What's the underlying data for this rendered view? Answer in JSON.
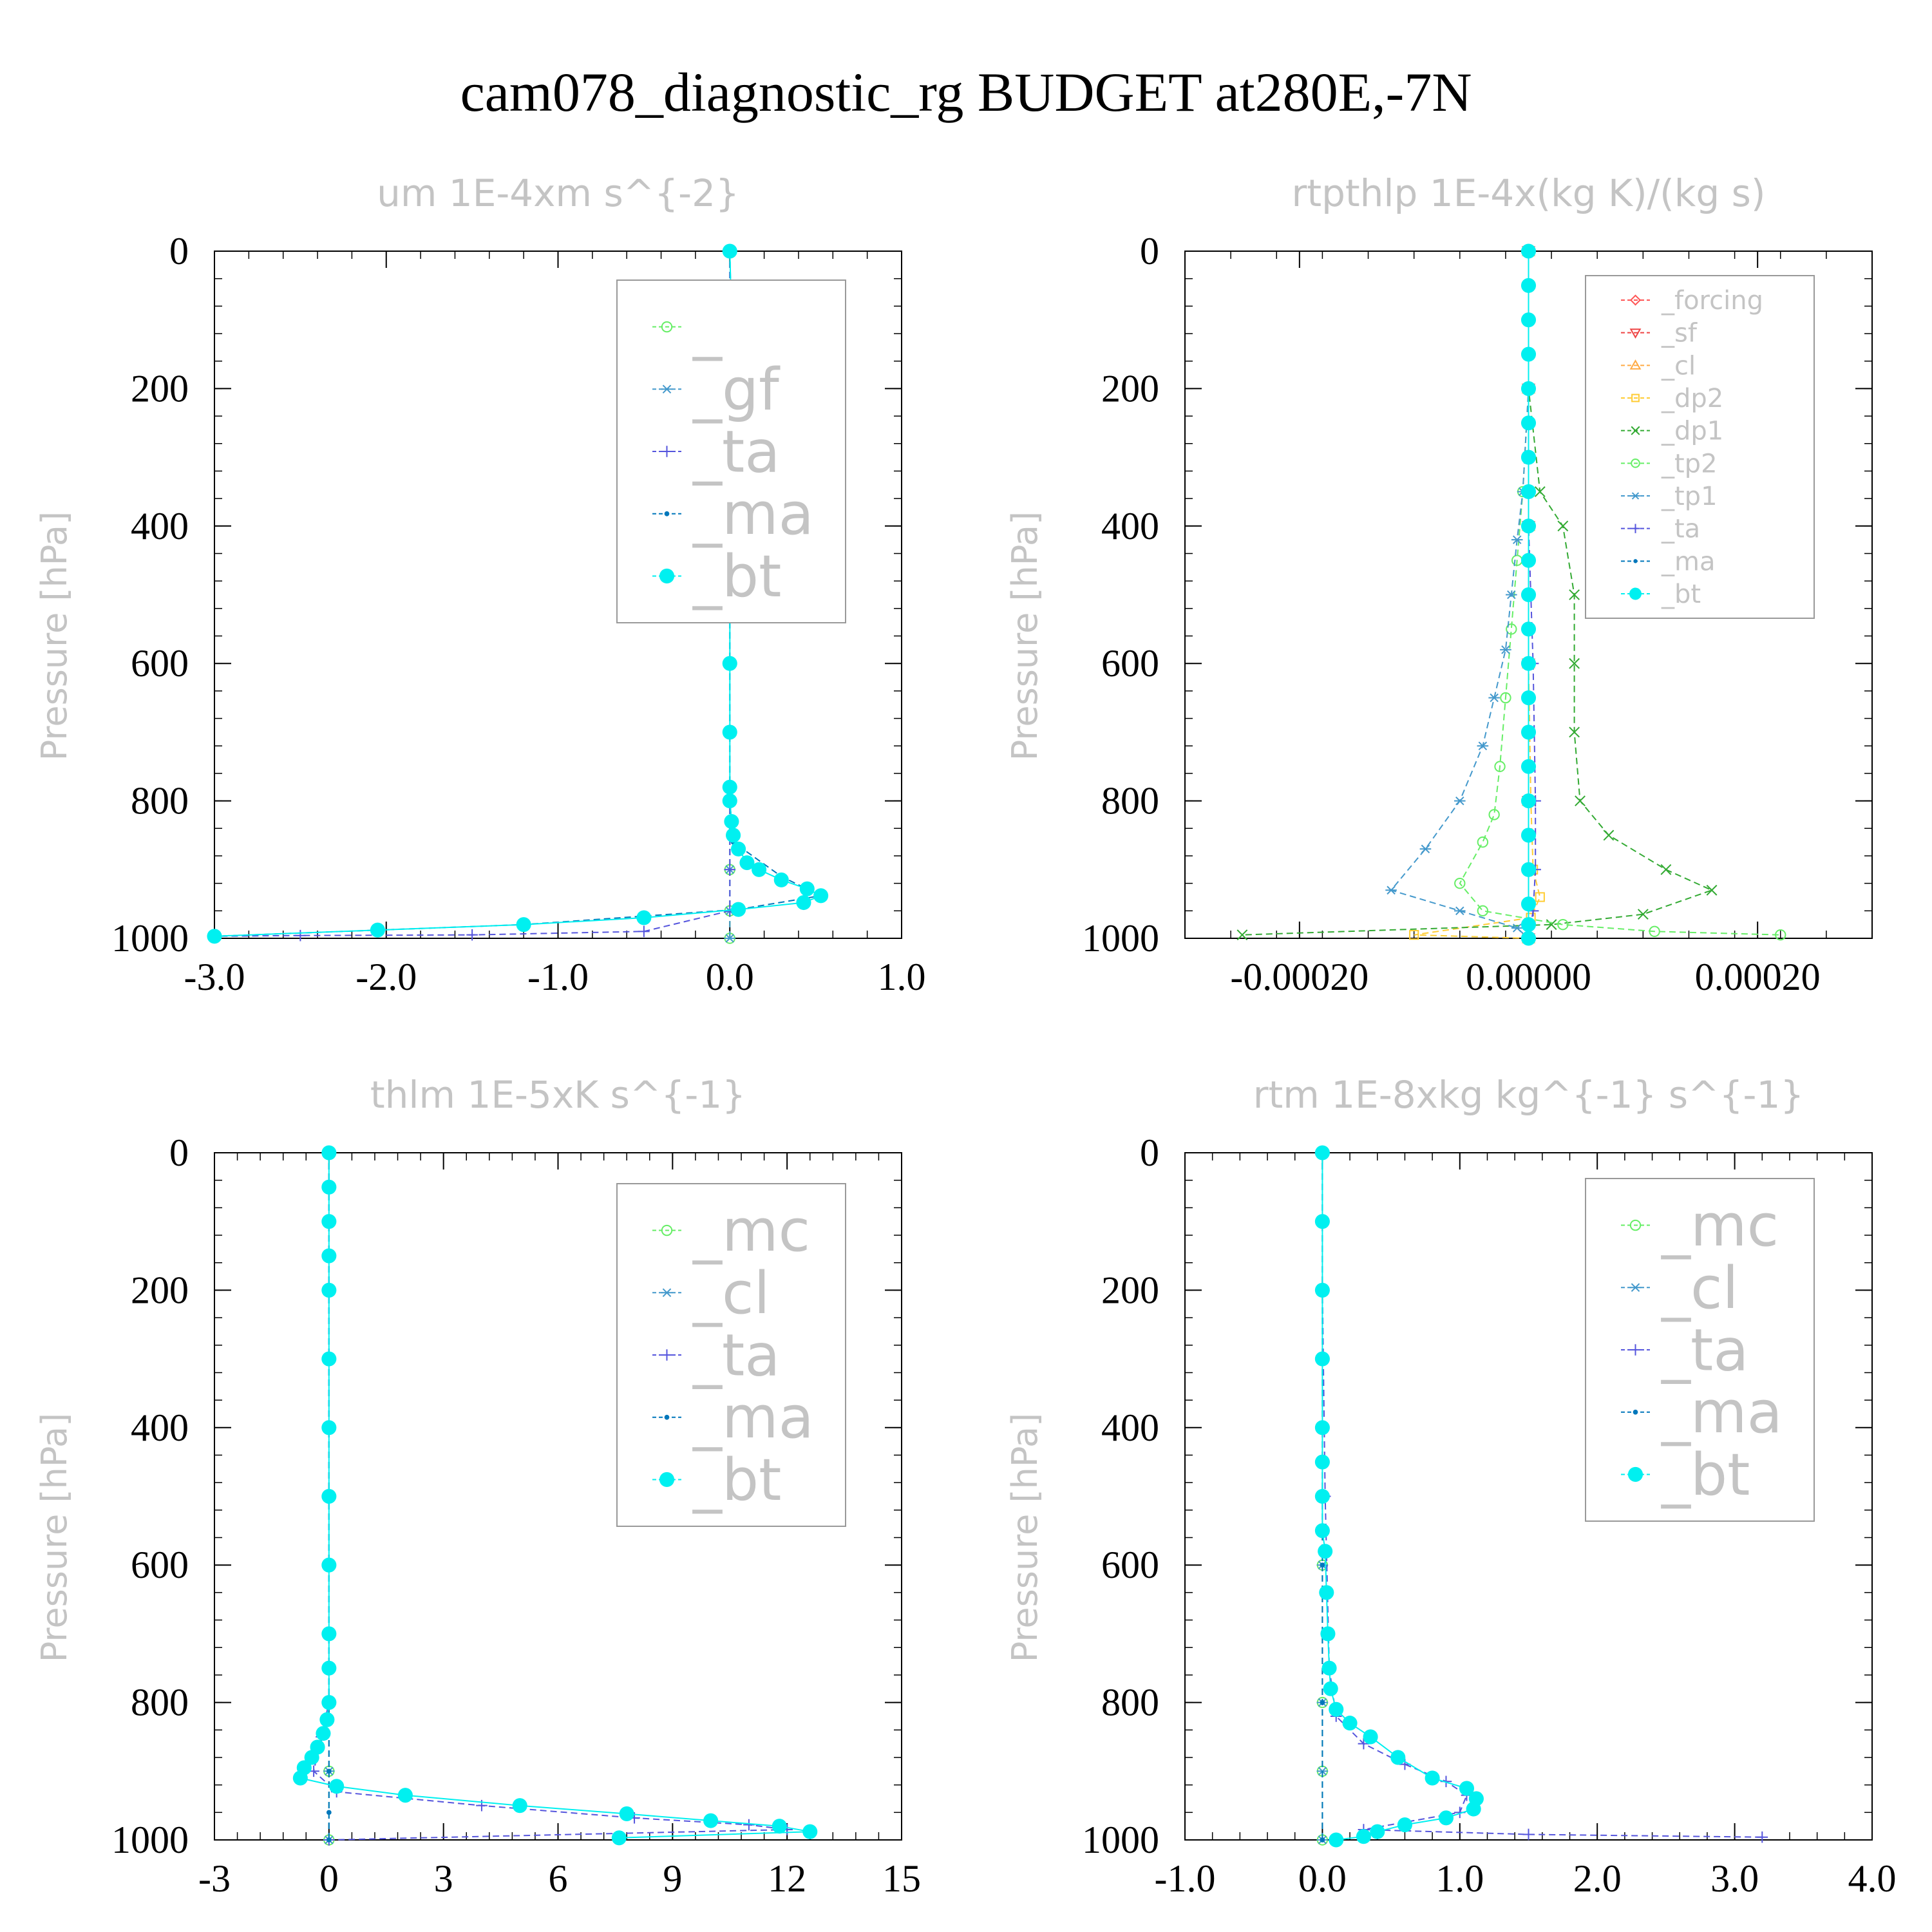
{
  "title": "cam078_diagnostic_rg  BUDGET at280E,-7N",
  "chart_data": [
    {
      "type": "line",
      "title": "um  1E-4xm s^{-2}",
      "ylabel": "Pressure [hPa]",
      "xlim": [
        -3.0,
        1.0
      ],
      "ylim": [
        1000,
        0
      ],
      "xticks": [
        -3.0,
        -2.0,
        -1.0,
        0.0,
        1.0
      ],
      "xtick_labels": [
        "-3.0",
        "-2.0",
        "-1.0",
        "0.0",
        "1.0"
      ],
      "yticks": [
        0,
        200,
        400,
        600,
        800,
        1000
      ],
      "ytick_labels": [
        "0",
        "200",
        "400",
        "600",
        "800",
        "1000"
      ],
      "legend_position": "upper-right",
      "grid": false,
      "series": [
        {
          "name": "_",
          "color": "#66ee66",
          "marker": "circle-open",
          "x": [
            0,
            0,
            0,
            0,
            0,
            0,
            0,
            0,
            0,
            0,
            0,
            0
          ],
          "y": [
            0,
            100,
            200,
            300,
            400,
            500,
            600,
            700,
            800,
            900,
            960,
            1000
          ]
        },
        {
          "name": "_gf",
          "color": "#4499cc",
          "marker": "asterisk",
          "x": [
            0,
            0,
            0,
            0,
            0,
            0,
            0,
            0,
            0,
            0,
            0,
            0
          ],
          "y": [
            0,
            100,
            200,
            300,
            400,
            500,
            600,
            700,
            800,
            900,
            960,
            1000
          ]
        },
        {
          "name": "_ta",
          "color": "#5555dd",
          "marker": "plus",
          "x": [
            0,
            0,
            0,
            0,
            0,
            0,
            0,
            -0.5,
            -1.5,
            -2.5,
            -3.0
          ],
          "y": [
            0,
            200,
            400,
            600,
            800,
            900,
            960,
            990,
            995,
            996,
            997
          ]
        },
        {
          "name": "_ma",
          "color": "#0077bb",
          "marker": "dot",
          "x": [
            0,
            0.01,
            -0.03,
            0,
            0,
            0,
            0,
            0.02,
            0.3,
            0.53,
            0.05,
            -1.2,
            -3.0
          ],
          "y": [
            0,
            110,
            190,
            300,
            500,
            700,
            800,
            860,
            910,
            938,
            958,
            980,
            997
          ]
        },
        {
          "name": "_bt",
          "color": "#00f0f0",
          "marker": "dot-filled",
          "x": [
            0,
            0.01,
            0.01,
            -0.03,
            -0.01,
            0,
            0,
            0,
            0,
            0,
            0,
            0,
            0.01,
            0.02,
            0.05,
            0.1,
            0.17,
            0.3,
            0.45,
            0.53,
            0.43,
            0.05,
            -0.5,
            -1.2,
            -2.05,
            -3.0
          ],
          "y": [
            0,
            100,
            130,
            190,
            230,
            300,
            400,
            500,
            600,
            700,
            780,
            800,
            830,
            850,
            870,
            890,
            900,
            915,
            928,
            938,
            948,
            958,
            970,
            980,
            988,
            997
          ]
        }
      ]
    },
    {
      "type": "line",
      "title": "rtpthlp  1E-4x(kg K)/(kg s)",
      "ylabel": "Pressure [hPa]",
      "xlim": [
        -0.0003,
        0.0003
      ],
      "ylim": [
        1000,
        0
      ],
      "xticks": [
        -0.0002,
        0.0,
        0.0002
      ],
      "xtick_labels": [
        "-0.00020",
        "0.00000",
        "0.00020"
      ],
      "yticks": [
        0,
        200,
        400,
        600,
        800,
        1000
      ],
      "ytick_labels": [
        "0",
        "200",
        "400",
        "600",
        "800",
        "1000"
      ],
      "legend_position": "upper-right",
      "grid": false,
      "series": [
        {
          "name": "_forcing",
          "color": "#ff5555",
          "marker": "diamond-open",
          "x": [
            0,
            0,
            0,
            0,
            0,
            0
          ],
          "y": [
            0,
            200,
            400,
            600,
            800,
            1000
          ]
        },
        {
          "name": "_sf",
          "color": "#ee4444",
          "marker": "triangle-down-open",
          "x": [
            0,
            0,
            0,
            0,
            0,
            0
          ],
          "y": [
            0,
            200,
            400,
            600,
            800,
            1000
          ]
        },
        {
          "name": "_cl",
          "color": "#ffaa44",
          "marker": "triangle-up-open",
          "x": [
            0,
            0,
            0,
            0,
            0,
            0
          ],
          "y": [
            0,
            200,
            400,
            600,
            800,
            1000
          ]
        },
        {
          "name": "_dp2",
          "color": "#ffcc33",
          "marker": "square-open",
          "x": [
            0,
            0,
            0,
            0,
            2e-06,
            4e-06,
            1e-05,
            2e-06,
            -0.0001,
            0
          ],
          "y": [
            0,
            200,
            400,
            600,
            800,
            900,
            940,
            970,
            995,
            1000
          ]
        },
        {
          "name": "_dp1",
          "color": "#33aa33",
          "marker": "x",
          "x": [
            0,
            0,
            1e-05,
            3e-05,
            4e-05,
            4e-05,
            4e-05,
            4.5e-05,
            7e-05,
            0.00012,
            0.00016,
            0.0001,
            2e-05,
            -0.00025
          ],
          "y": [
            0,
            200,
            350,
            400,
            500,
            600,
            700,
            800,
            850,
            900,
            930,
            965,
            980,
            995
          ]
        },
        {
          "name": "_tp2",
          "color": "#66ee66",
          "marker": "circle-open",
          "x": [
            0,
            0,
            -5e-06,
            -1e-05,
            -1.5e-05,
            -2e-05,
            -2.5e-05,
            -3e-05,
            -4e-05,
            -6e-05,
            -4e-05,
            3e-05,
            0.00011,
            0.00022
          ],
          "y": [
            0,
            200,
            350,
            450,
            550,
            650,
            750,
            820,
            860,
            920,
            960,
            980,
            990,
            995
          ]
        },
        {
          "name": "_tp1",
          "color": "#4499cc",
          "marker": "asterisk",
          "x": [
            0,
            0,
            -5e-06,
            -1e-05,
            -1.5e-05,
            -2e-05,
            -3e-05,
            -4e-05,
            -6e-05,
            -9e-05,
            -0.00012,
            -6e-05,
            -1e-05,
            0
          ],
          "y": [
            0,
            200,
            350,
            420,
            500,
            580,
            650,
            720,
            800,
            870,
            930,
            960,
            985,
            1000
          ]
        },
        {
          "name": "_ta",
          "color": "#5555dd",
          "marker": "plus",
          "x": [
            0,
            0,
            0,
            4e-06,
            6e-06,
            6e-06,
            4e-06,
            0
          ],
          "y": [
            0,
            200,
            400,
            600,
            800,
            900,
            960,
            1000
          ]
        },
        {
          "name": "_ma",
          "color": "#0077bb",
          "marker": "dot",
          "x": [
            0,
            0,
            0,
            0,
            0,
            0
          ],
          "y": [
            0,
            200,
            400,
            600,
            800,
            1000
          ]
        },
        {
          "name": "_bt",
          "color": "#00f0f0",
          "marker": "dot-filled",
          "x": [
            0,
            0,
            0,
            0,
            0,
            0,
            0,
            0,
            0,
            0,
            0,
            0,
            0,
            0,
            0,
            0,
            0,
            0,
            0,
            0,
            0,
            0
          ],
          "y": [
            0,
            50,
            100,
            150,
            200,
            250,
            300,
            350,
            400,
            450,
            500,
            550,
            600,
            650,
            700,
            750,
            800,
            850,
            900,
            950,
            980,
            1000
          ]
        }
      ]
    },
    {
      "type": "line",
      "title": "thlm  1E-5xK s^{-1}",
      "ylabel": "Pressure [hPa]",
      "xlim": [
        -3,
        15
      ],
      "ylim": [
        1000,
        0
      ],
      "xticks": [
        -3,
        0,
        3,
        6,
        9,
        12,
        15
      ],
      "xtick_labels": [
        "-3",
        "0",
        "3",
        "6",
        "9",
        "12",
        "15"
      ],
      "yticks": [
        0,
        200,
        400,
        600,
        800,
        1000
      ],
      "ytick_labels": [
        "0",
        "200",
        "400",
        "600",
        "800",
        "1000"
      ],
      "legend_position": "upper-right",
      "grid": false,
      "series": [
        {
          "name": "_mc",
          "color": "#66ee66",
          "marker": "circle-open",
          "x": [
            0,
            0,
            0,
            0,
            0,
            0,
            0
          ],
          "y": [
            0,
            200,
            400,
            600,
            800,
            900,
            1000
          ]
        },
        {
          "name": "_cl",
          "color": "#4499cc",
          "marker": "asterisk",
          "x": [
            0,
            0,
            0,
            0,
            0,
            0,
            0
          ],
          "y": [
            0,
            200,
            400,
            600,
            800,
            900,
            1000
          ]
        },
        {
          "name": "_ta",
          "color": "#5555dd",
          "marker": "plus",
          "x": [
            0,
            0,
            0,
            0,
            -0.2,
            -0.4,
            0.2,
            4,
            8,
            11,
            12,
            0
          ],
          "y": [
            0,
            200,
            400,
            800,
            850,
            900,
            930,
            950,
            968,
            978,
            985,
            1000
          ]
        },
        {
          "name": "_ma",
          "color": "#0077bb",
          "marker": "dot",
          "x": [
            0,
            0,
            0,
            0,
            0,
            0,
            0,
            0
          ],
          "y": [
            0,
            200,
            400,
            600,
            800,
            900,
            960,
            1000
          ]
        },
        {
          "name": "_bt",
          "color": "#00f0f0",
          "marker": "dot-filled",
          "x": [
            0,
            0,
            0,
            0,
            0,
            0,
            0,
            0,
            0,
            0,
            0,
            0,
            -0.05,
            -0.15,
            -0.3,
            -0.45,
            -0.65,
            -0.75,
            0.2,
            2,
            5,
            7.8,
            10,
            11.8,
            12.6,
            7.6
          ],
          "y": [
            0,
            50,
            100,
            150,
            200,
            300,
            400,
            500,
            600,
            700,
            750,
            800,
            825,
            845,
            865,
            880,
            895,
            910,
            922,
            935,
            950,
            962,
            972,
            980,
            988,
            997
          ]
        }
      ]
    },
    {
      "type": "line",
      "title": "rtm  1E-8xkg kg^{-1} s^{-1}",
      "ylabel": "Pressure [hPa]",
      "xlim": [
        -1.0,
        4.0
      ],
      "ylim": [
        1000,
        0
      ],
      "xticks": [
        -1.0,
        0.0,
        1.0,
        2.0,
        3.0,
        4.0
      ],
      "xtick_labels": [
        "-1.0",
        "0.0",
        "1.0",
        "2.0",
        "3.0",
        "4.0"
      ],
      "yticks": [
        0,
        200,
        400,
        600,
        800,
        1000
      ],
      "ytick_labels": [
        "0",
        "200",
        "400",
        "600",
        "800",
        "1000"
      ],
      "legend_position": "upper-right",
      "grid": false,
      "series": [
        {
          "name": "_mc",
          "color": "#66ee66",
          "marker": "circle-open",
          "x": [
            0,
            0,
            0,
            0,
            0,
            0,
            0
          ],
          "y": [
            0,
            200,
            400,
            600,
            800,
            900,
            1000
          ]
        },
        {
          "name": "_cl",
          "color": "#4499cc",
          "marker": "asterisk",
          "x": [
            0,
            0,
            0,
            0,
            0,
            0,
            0
          ],
          "y": [
            0,
            200,
            400,
            600,
            800,
            900,
            1000
          ]
        },
        {
          "name": "_ta",
          "color": "#5555dd",
          "marker": "plus",
          "x": [
            0,
            0,
            0.02,
            0.05,
            0.1,
            0.3,
            0.6,
            0.9,
            1.05,
            1.0,
            0.3,
            1.5,
            3.2
          ],
          "y": [
            0,
            200,
            500,
            750,
            820,
            860,
            890,
            915,
            935,
            960,
            985,
            992,
            996
          ]
        },
        {
          "name": "_ma",
          "color": "#0077bb",
          "marker": "dot",
          "x": [
            0,
            0,
            0,
            0,
            0,
            0
          ],
          "y": [
            0,
            200,
            400,
            600,
            800,
            1000
          ]
        },
        {
          "name": "_bt",
          "color": "#00f0f0",
          "marker": "dot-filled",
          "x": [
            0,
            0,
            0,
            0,
            0,
            0,
            0,
            0,
            0.02,
            0.03,
            0.04,
            0.05,
            0.06,
            0.1,
            0.2,
            0.35,
            0.55,
            0.8,
            1.05,
            1.12,
            1.1,
            0.9,
            0.6,
            0.4,
            0.3,
            0.1
          ],
          "y": [
            0,
            100,
            200,
            300,
            400,
            450,
            500,
            550,
            580,
            640,
            700,
            750,
            780,
            810,
            830,
            850,
            880,
            910,
            925,
            940,
            955,
            968,
            978,
            988,
            995,
            1000
          ]
        }
      ]
    }
  ]
}
